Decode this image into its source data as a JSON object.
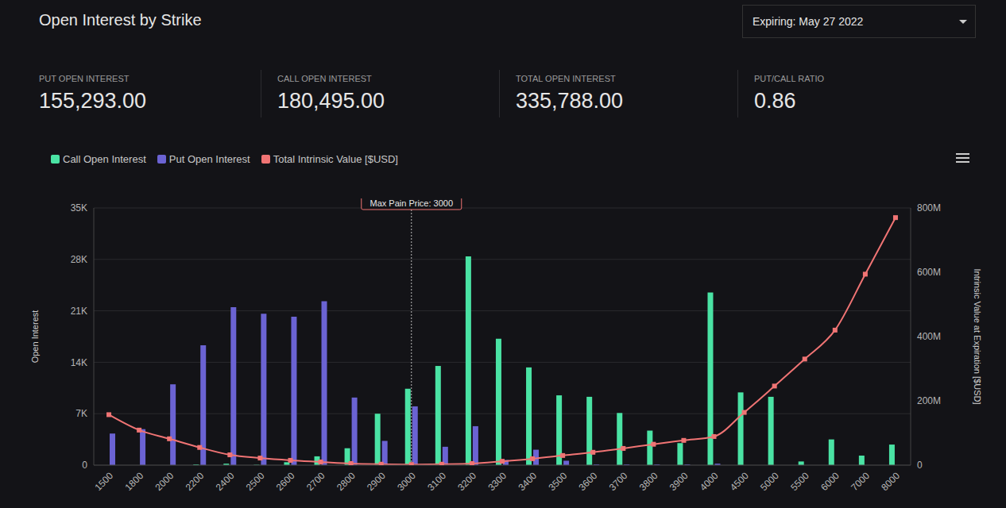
{
  "header": {
    "title": "Open Interest by Strike",
    "selector": "Expiring: May 27 2022",
    "stats": [
      {
        "label": "PUT OPEN INTEREST",
        "value": "155,293.00"
      },
      {
        "label": "CALL OPEN INTEREST",
        "value": "180,495.00"
      },
      {
        "label": "TOTAL OPEN INTEREST",
        "value": "335,788.00"
      },
      {
        "label": "PUT/CALL RATIO",
        "value": "0.86"
      }
    ]
  },
  "chart_data": {
    "type": "bar",
    "categories": [
      "1500",
      "1800",
      "2000",
      "2200",
      "2400",
      "2500",
      "2600",
      "2700",
      "2800",
      "2900",
      "3000",
      "3100",
      "3200",
      "3300",
      "3400",
      "3500",
      "3600",
      "3700",
      "3800",
      "3900",
      "4000",
      "4500",
      "5000",
      "5500",
      "6000",
      "7000",
      "8000"
    ],
    "series": [
      {
        "name": "Call Open Interest",
        "type": "bar",
        "color": "#4ae3a4",
        "values": [
          0,
          0,
          0,
          100,
          200,
          50,
          400,
          1200,
          2300,
          7000,
          10400,
          13500,
          28400,
          17200,
          13300,
          9500,
          9300,
          7100,
          4700,
          3000,
          23500,
          9900,
          9300,
          500,
          3500,
          1300,
          2800
        ]
      },
      {
        "name": "Put Open Interest",
        "type": "bar",
        "color": "#6b63d3",
        "values": [
          4300,
          4900,
          11000,
          16300,
          21500,
          20600,
          20200,
          22300,
          9200,
          3300,
          8000,
          2500,
          5300,
          700,
          2100,
          600,
          100,
          100,
          100,
          100,
          200,
          0,
          0,
          0,
          0,
          0,
          0
        ]
      },
      {
        "name": "Total Intrinsic Value [$USD]",
        "type": "line",
        "axis": "y2",
        "color": "#f07474",
        "marker": "square",
        "values": [
          157000000,
          109000000,
          82000000,
          55000000,
          32000000,
          22000000,
          15000000,
          10000000,
          5000000,
          3000000,
          2000000,
          3000000,
          5000000,
          12000000,
          20000000,
          30000000,
          40000000,
          52000000,
          65000000,
          77000000,
          89000000,
          164000000,
          246000000,
          330000000,
          420000000,
          594000000,
          770000000
        ]
      }
    ],
    "y_label": "Open Interest",
    "y2_label": "Intrinsic Value at Expiration [$USD]",
    "ylim": [
      0,
      35000
    ],
    "yticks": [
      0,
      {
        "value": 7000,
        "label": "7K"
      },
      {
        "value": 14000,
        "label": "14K"
      },
      {
        "value": 21000,
        "label": "21K"
      },
      {
        "value": 28000,
        "label": "28K"
      },
      {
        "value": 35000,
        "label": "35K"
      }
    ],
    "y2lim": [
      0,
      800000000
    ],
    "y2ticks": [
      0,
      {
        "value": 200000000,
        "label": "200M"
      },
      {
        "value": 400000000,
        "label": "400M"
      },
      {
        "value": 600000000,
        "label": "600M"
      },
      {
        "value": 800000000,
        "label": "800M"
      }
    ],
    "annotations": [
      {
        "x": "3000",
        "text": "Max Pain Price: 3000"
      }
    ],
    "grid": true,
    "legend": "top-left"
  }
}
